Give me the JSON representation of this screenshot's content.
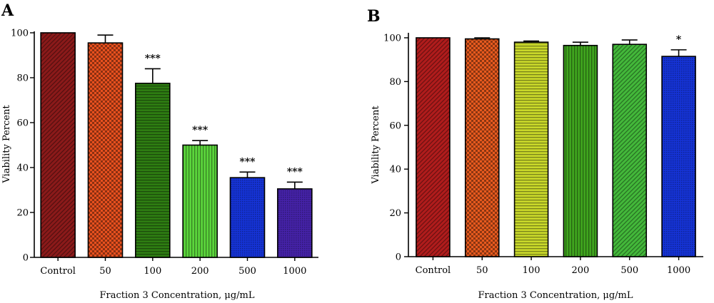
{
  "chart_data": [
    {
      "type": "bar",
      "panel_label": "A",
      "categories": [
        "Control",
        "50",
        "100",
        "200",
        "500",
        "1000"
      ],
      "values": [
        100,
        95.5,
        77.5,
        50,
        35.5,
        30.5
      ],
      "error": [
        0,
        3.5,
        6.5,
        2,
        2.5,
        3
      ],
      "significance": [
        "",
        "",
        "***",
        "***",
        "***",
        "***"
      ],
      "colors": [
        "#8b1a1a",
        "#e8501e",
        "#2e7d12",
        "#5bd63c",
        "#1533d6",
        "#4522a8"
      ],
      "patterns": [
        "diagonal",
        "checker",
        "hlines",
        "vlines",
        "dense",
        "dense"
      ],
      "xlabel": "Fraction 3 Concentration, μg/mL",
      "ylabel": "Viability Percent",
      "ylim": [
        0,
        100
      ],
      "yticks": [
        "0",
        "20",
        "40",
        "60",
        "80",
        "100"
      ],
      "grid": false
    },
    {
      "type": "bar",
      "panel_label": "B",
      "categories": [
        "Control",
        "50",
        "100",
        "200",
        "500",
        "1000"
      ],
      "values": [
        100,
        99.5,
        98,
        96.5,
        97,
        91.5
      ],
      "error": [
        0,
        0.5,
        0.5,
        1.5,
        2,
        3
      ],
      "significance": [
        "",
        "",
        "",
        "",
        "",
        "*"
      ],
      "colors": [
        "#b01c1c",
        "#e85a1e",
        "#c9d82a",
        "#3fa51e",
        "#43b83a",
        "#1533d6"
      ],
      "patterns": [
        "diagonal",
        "checker",
        "hlines",
        "vlines",
        "diagonal",
        "dense"
      ],
      "xlabel": "Fraction 3 Concentration, μg/mL",
      "ylabel": "Viability Percent",
      "ylim": [
        0,
        100
      ],
      "yticks": [
        "0",
        "20",
        "40",
        "60",
        "80",
        "100"
      ],
      "grid": false
    }
  ]
}
